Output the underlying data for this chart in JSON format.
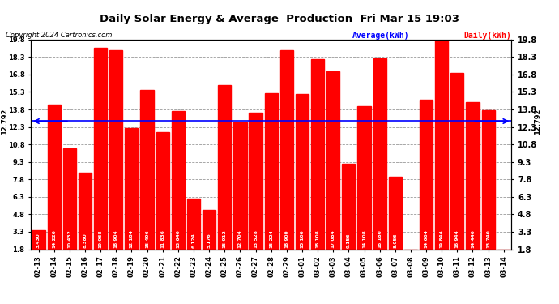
{
  "title": "Daily Solar Energy & Average  Production  Fri Mar 15 19:03",
  "copyright": "Copyright 2024 Cartronics.com",
  "average_label": "Average(kWh)",
  "daily_label": "Daily(kWh)",
  "average_value": 12.792,
  "average_color": "#0000ff",
  "bar_color": "#ff0000",
  "categories": [
    "02-13",
    "02-14",
    "02-15",
    "02-16",
    "02-17",
    "02-18",
    "02-19",
    "02-20",
    "02-21",
    "02-22",
    "02-23",
    "02-24",
    "02-25",
    "02-26",
    "02-27",
    "02-28",
    "02-29",
    "03-01",
    "03-02",
    "03-03",
    "03-04",
    "03-05",
    "03-06",
    "03-07",
    "03-08",
    "03-09",
    "03-10",
    "03-11",
    "03-12",
    "03-13",
    "03-14"
  ],
  "values": [
    3.43,
    14.22,
    10.432,
    8.38,
    19.068,
    18.904,
    12.184,
    15.496,
    11.836,
    13.64,
    6.124,
    5.176,
    15.912,
    12.704,
    13.528,
    15.224,
    18.9,
    15.1,
    18.108,
    17.084,
    9.156,
    14.108,
    18.18,
    8.056,
    0.0,
    14.664,
    19.844,
    16.944,
    14.44,
    13.74,
    0.0
  ],
  "ylim": [
    1.8,
    19.8
  ],
  "yticks": [
    1.8,
    3.3,
    4.8,
    6.3,
    7.8,
    9.3,
    10.8,
    12.3,
    13.8,
    15.3,
    16.8,
    18.3,
    19.8
  ],
  "ytick_labels": [
    "1.8",
    "3.3",
    "4.8",
    "6.3",
    "7.8",
    "9.3",
    "10.8",
    "12.3",
    "13.8",
    "15.3",
    "16.8",
    "18.3",
    "19.8"
  ],
  "grid_color": "#999999",
  "bg_color": "#ffffff",
  "plot_bg_color": "#ffffff"
}
